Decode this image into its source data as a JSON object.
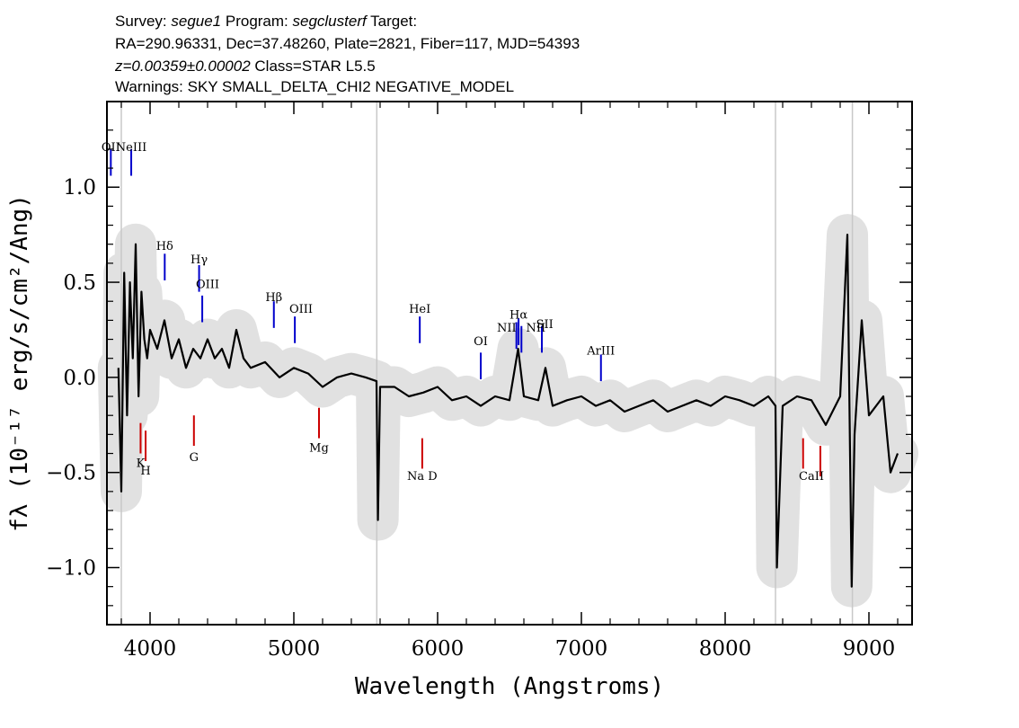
{
  "header": {
    "line1": {
      "survey_label": "Survey: ",
      "survey": "segue1",
      "program_label": " Program: ",
      "program": "segclusterf",
      "target_label": " Target:"
    },
    "line2": "RA=290.96331, Dec=37.48260, Plate=2821, Fiber=117, MJD=54393",
    "line3": {
      "z": "z=0.00359±0.00002",
      "class": " Class=STAR L5.5"
    },
    "line4": "Warnings: SKY SMALL_DELTA_CHI2 NEGATIVE_MODEL"
  },
  "chart_data": {
    "type": "line",
    "xlabel": "Wavelength (Angstroms)",
    "ylabel": "fλ (10⁻¹⁷ erg/s/cm²/Ang)",
    "xlim": [
      3700,
      9300
    ],
    "ylim": [
      -1.3,
      1.45
    ],
    "x_ticks": [
      4000,
      5000,
      6000,
      7000,
      8000,
      9000
    ],
    "x_tick_labels": [
      "4000",
      "5000",
      "6000",
      "7000",
      "8000",
      "9000"
    ],
    "y_ticks": [
      1.0,
      0.5,
      0.0,
      -0.5,
      -1.0
    ],
    "y_tick_labels": [
      "1.0",
      "0.5",
      "0.0",
      "−0.5",
      "−1.0"
    ],
    "grid": false,
    "series": [
      {
        "color": "#000000",
        "x": [
          3780,
          3800,
          3820,
          3840,
          3860,
          3880,
          3900,
          3920,
          3940,
          3960,
          3980,
          4000,
          4050,
          4100,
          4150,
          4200,
          4250,
          4300,
          4350,
          4400,
          4450,
          4500,
          4550,
          4600,
          4650,
          4700,
          4800,
          4900,
          5000,
          5100,
          5200,
          5300,
          5400,
          5500,
          5575,
          5585,
          5600,
          5700,
          5800,
          5900,
          6000,
          6100,
          6200,
          6300,
          6400,
          6500,
          6560,
          6600,
          6700,
          6750,
          6800,
          6900,
          7000,
          7100,
          7200,
          7300,
          7400,
          7500,
          7600,
          7700,
          7800,
          7900,
          8000,
          8100,
          8200,
          8300,
          8350,
          8360,
          8400,
          8500,
          8600,
          8700,
          8800,
          8850,
          8880,
          8900,
          8950,
          9000,
          9100,
          9150,
          9200
        ],
        "values": [
          0.05,
          -0.6,
          0.55,
          -0.2,
          0.5,
          0.1,
          0.7,
          -0.1,
          0.45,
          0.2,
          0.1,
          0.25,
          0.15,
          0.3,
          0.1,
          0.2,
          0.05,
          0.15,
          0.1,
          0.2,
          0.1,
          0.15,
          0.05,
          0.25,
          0.1,
          0.05,
          0.08,
          0.0,
          0.05,
          0.02,
          -0.05,
          0.0,
          0.02,
          0.0,
          -0.02,
          -0.75,
          -0.05,
          -0.05,
          -0.1,
          -0.08,
          -0.05,
          -0.12,
          -0.1,
          -0.15,
          -0.1,
          -0.12,
          0.15,
          -0.1,
          -0.12,
          0.05,
          -0.15,
          -0.12,
          -0.1,
          -0.15,
          -0.12,
          -0.18,
          -0.15,
          -0.12,
          -0.18,
          -0.15,
          -0.12,
          -0.15,
          -0.1,
          -0.12,
          -0.15,
          -0.1,
          -0.15,
          -1.0,
          -0.15,
          -0.1,
          -0.12,
          -0.25,
          -0.1,
          0.75,
          -1.1,
          -0.3,
          0.3,
          -0.2,
          -0.1,
          -0.5,
          -0.4
        ]
      }
    ],
    "annotations": {
      "emission": [
        "OII",
        "NeIII",
        "Hδ",
        "Hγ",
        "OIII",
        "Hβ",
        "OIII",
        "HeI",
        "OI",
        "NII",
        "Hα",
        "NII",
        "SII",
        "ArIII"
      ],
      "absorption": [
        "K",
        "H",
        "G",
        "Mg",
        "Na D",
        "CaII"
      ]
    }
  },
  "colors": {
    "spectrum": "#000000",
    "error_band": "#c8c8c8",
    "emission": "#0000cc",
    "absorption": "#cc0000"
  }
}
